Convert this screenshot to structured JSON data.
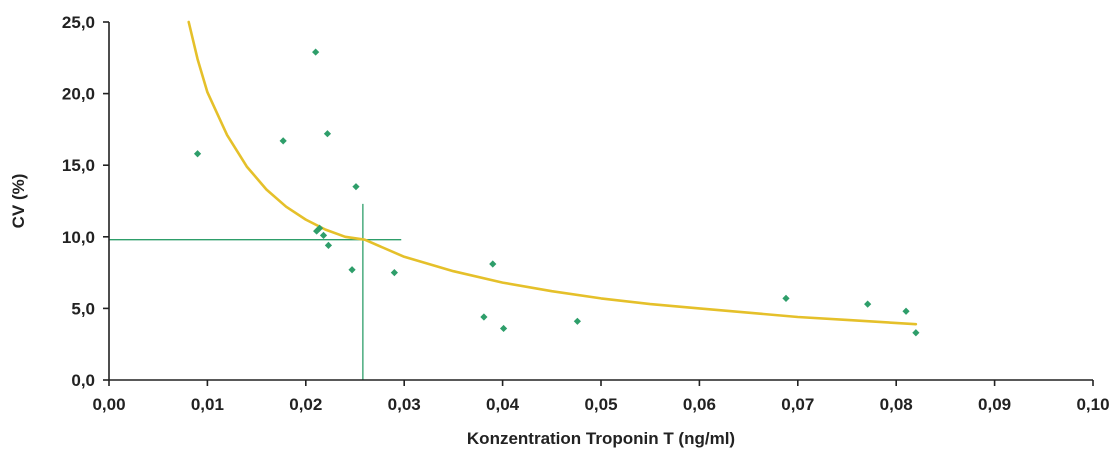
{
  "chart_data": {
    "type": "scatter",
    "title": "",
    "xlabel": "Konzentration Troponin T (ng/ml)",
    "ylabel": "CV (%)",
    "xlim": [
      0,
      0.1
    ],
    "ylim": [
      0,
      25
    ],
    "x_ticks": [
      "0,00",
      "0,01",
      "0,02",
      "0,03",
      "0,04",
      "0,05",
      "0,06",
      "0,07",
      "0,08",
      "0,09",
      "0,10"
    ],
    "y_ticks": [
      "0,0",
      "5,0",
      "10,0",
      "15,0",
      "20,0",
      "25,0"
    ],
    "grid": false,
    "series": [
      {
        "type": "scatter",
        "color": "#2e9e6a",
        "points": [
          {
            "x": 0.009,
            "y": 15.8
          },
          {
            "x": 0.0177,
            "y": 16.7
          },
          {
            "x": 0.021,
            "y": 22.9
          },
          {
            "x": 0.0211,
            "y": 10.4
          },
          {
            "x": 0.0214,
            "y": 10.6
          },
          {
            "x": 0.0218,
            "y": 10.1
          },
          {
            "x": 0.0222,
            "y": 17.2
          },
          {
            "x": 0.0223,
            "y": 9.4
          },
          {
            "x": 0.0247,
            "y": 7.7
          },
          {
            "x": 0.0251,
            "y": 13.5
          },
          {
            "x": 0.029,
            "y": 7.5
          },
          {
            "x": 0.0381,
            "y": 4.4
          },
          {
            "x": 0.039,
            "y": 8.1
          },
          {
            "x": 0.0401,
            "y": 3.6
          },
          {
            "x": 0.0476,
            "y": 4.1
          },
          {
            "x": 0.0688,
            "y": 5.7
          },
          {
            "x": 0.0771,
            "y": 5.3
          },
          {
            "x": 0.081,
            "y": 4.8
          },
          {
            "x": 0.082,
            "y": 3.3
          }
        ]
      },
      {
        "type": "line",
        "color": "#e5c02a",
        "points": [
          {
            "x": 0.0081,
            "y": 25.0
          },
          {
            "x": 0.009,
            "y": 22.4
          },
          {
            "x": 0.01,
            "y": 20.1
          },
          {
            "x": 0.012,
            "y": 17.1
          },
          {
            "x": 0.014,
            "y": 14.9
          },
          {
            "x": 0.016,
            "y": 13.3
          },
          {
            "x": 0.018,
            "y": 12.1
          },
          {
            "x": 0.02,
            "y": 11.2
          },
          {
            "x": 0.022,
            "y": 10.5
          },
          {
            "x": 0.024,
            "y": 10.0
          },
          {
            "x": 0.026,
            "y": 9.8
          },
          {
            "x": 0.03,
            "y": 8.6
          },
          {
            "x": 0.035,
            "y": 7.6
          },
          {
            "x": 0.04,
            "y": 6.8
          },
          {
            "x": 0.045,
            "y": 6.2
          },
          {
            "x": 0.05,
            "y": 5.7
          },
          {
            "x": 0.055,
            "y": 5.3
          },
          {
            "x": 0.06,
            "y": 5.0
          },
          {
            "x": 0.065,
            "y": 4.7
          },
          {
            "x": 0.07,
            "y": 4.4
          },
          {
            "x": 0.075,
            "y": 4.2
          },
          {
            "x": 0.082,
            "y": 3.9
          }
        ]
      }
    ],
    "reference_lines": {
      "color": "#2e9e6a",
      "horizontal": {
        "y": 9.8,
        "x_from": 0.0,
        "x_to": 0.0297
      },
      "vertical": {
        "x": 0.0258,
        "y_from": 0.0,
        "y_to": 12.3
      }
    },
    "axis_color": "#222222"
  }
}
